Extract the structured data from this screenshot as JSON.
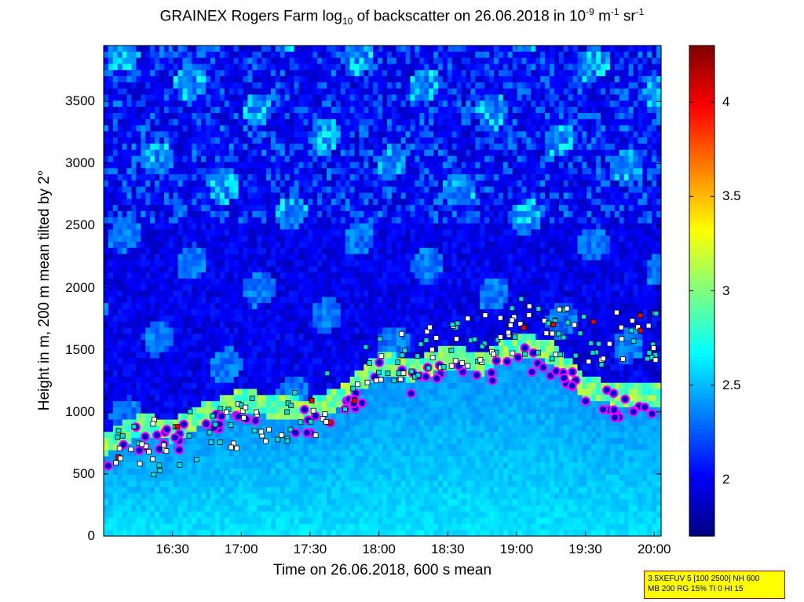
{
  "chart_data": {
    "type": "heatmap",
    "title": {
      "prefix": "GRAINEX Rogers Farm log",
      "sub": "10",
      "middle": " of backscatter on 26.06.2018 in 10",
      "sup1": "-9",
      "mid2": " m",
      "sup2": "-1",
      "mid3": " sr",
      "sup3": "-1"
    },
    "xlabel": "Time on 26.06.2018, 600 s mean",
    "ylabel": "Height in m, 200 m mean tilted by 2°",
    "xlim": [
      "16:00",
      "20:03"
    ],
    "ylim": [
      0,
      3950
    ],
    "x_ticks": [
      "16:30",
      "17:00",
      "17:30",
      "18:00",
      "18:30",
      "19:00",
      "19:30",
      "20:00"
    ],
    "y_ticks": [
      0,
      500,
      1000,
      1500,
      2000,
      2500,
      3000,
      3500
    ],
    "colorbar": {
      "colormap": "jet",
      "range": [
        1.7,
        4.3
      ],
      "ticks": [
        2,
        2.5,
        3,
        3.5,
        4
      ],
      "tick_labels": [
        "2",
        "2.5",
        "3",
        "3.5",
        "4"
      ]
    },
    "colors": {
      "low": "#00008f",
      "high": "#800000",
      "layer_marker_fill": "#0000cc",
      "layer_marker_edge": "#ff00ff",
      "square_marker_cyan": "#00dddd",
      "square_marker_white": "#ffffff",
      "square_marker_red": "#ee0000"
    },
    "boundary_layer_top_m": [
      {
        "t": "16:00",
        "h": 650
      },
      {
        "t": "16:15",
        "h": 800
      },
      {
        "t": "16:30",
        "h": 760
      },
      {
        "t": "16:45",
        "h": 900
      },
      {
        "t": "17:00",
        "h": 1000
      },
      {
        "t": "17:15",
        "h": 950
      },
      {
        "t": "17:30",
        "h": 920
      },
      {
        "t": "17:45",
        "h": 1050
      },
      {
        "t": "18:00",
        "h": 1300
      },
      {
        "t": "18:15",
        "h": 1250
      },
      {
        "t": "18:30",
        "h": 1350
      },
      {
        "t": "18:45",
        "h": 1300
      },
      {
        "t": "19:00",
        "h": 1450
      },
      {
        "t": "19:15",
        "h": 1400
      },
      {
        "t": "19:30",
        "h": 1100
      },
      {
        "t": "19:45",
        "h": 1050
      },
      {
        "t": "20:00",
        "h": 1050
      }
    ],
    "elevated_aerosol_layer_m": [
      {
        "t": "16:00",
        "h": 600
      },
      {
        "t": "16:30",
        "h": 700
      },
      {
        "t": "17:00",
        "h": 850
      },
      {
        "t": "17:30",
        "h": 950
      },
      {
        "t": "18:00",
        "h": 1400
      },
      {
        "t": "18:30",
        "h": 1500
      },
      {
        "t": "19:00",
        "h": 1650
      },
      {
        "t": "19:30",
        "h": 1550
      },
      {
        "t": "20:00",
        "h": 1550
      }
    ]
  },
  "info_box": {
    "line1": "3.5XEFUV 5 [100 2500] NH 600",
    "line2": "MB 200 RG 15% TI 0 HI 15"
  }
}
